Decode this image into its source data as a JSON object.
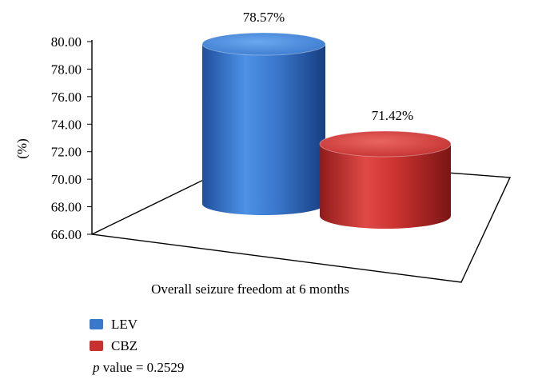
{
  "chart_data": {
    "type": "bar",
    "title": "",
    "xlabel": "Overall seizure freedom at 6 months",
    "ylabel": "(%)",
    "ylim": [
      66,
      80
    ],
    "yticks": [
      "80.00",
      "78.00",
      "76.00",
      "74.00",
      "72.00",
      "70.00",
      "68.00",
      "66.00"
    ],
    "series": [
      {
        "name": "LEV",
        "value": 78.57,
        "label": "78.57%",
        "color": "#3a78cc"
      },
      {
        "name": "CBZ",
        "value": 71.42,
        "label": "71.42%",
        "color": "#c8312f"
      }
    ],
    "grid": false,
    "legend_position": "bottom-left",
    "style": "3d-cylinder"
  },
  "note": {
    "p_symbol": "p",
    "text": " value = 0.2529"
  }
}
